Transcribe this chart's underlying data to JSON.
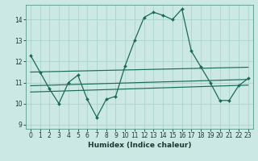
{
  "xlabel": "Humidex (Indice chaleur)",
  "bg_color": "#cce8e4",
  "grid_color": "#aad4cc",
  "line_color": "#1a6b5a",
  "ylim": [
    8.8,
    14.7
  ],
  "xlim": [
    -0.5,
    23.5
  ],
  "yticks": [
    9,
    10,
    11,
    12,
    13,
    14
  ],
  "xticks": [
    0,
    1,
    2,
    3,
    4,
    5,
    6,
    7,
    8,
    9,
    10,
    11,
    12,
    13,
    14,
    15,
    16,
    17,
    18,
    19,
    20,
    21,
    22,
    23
  ],
  "line1_x": [
    0,
    1,
    2,
    3,
    4,
    5,
    6,
    7,
    8,
    9,
    10,
    11,
    12,
    13,
    14,
    15,
    16,
    17,
    18,
    19,
    20,
    21,
    22,
    23
  ],
  "line1_y": [
    12.3,
    11.5,
    10.7,
    10.0,
    11.0,
    11.35,
    10.2,
    9.35,
    10.2,
    10.35,
    11.8,
    13.0,
    14.1,
    14.35,
    14.2,
    14.0,
    14.5,
    12.5,
    11.75,
    11.0,
    10.15,
    10.15,
    10.85,
    11.2
  ],
  "line2_x": [
    0,
    23
  ],
  "line2_y": [
    11.5,
    11.73
  ],
  "line3_x": [
    0,
    23
  ],
  "line3_y": [
    10.85,
    11.15
  ],
  "line4_x": [
    0,
    23
  ],
  "line4_y": [
    10.55,
    10.88
  ]
}
